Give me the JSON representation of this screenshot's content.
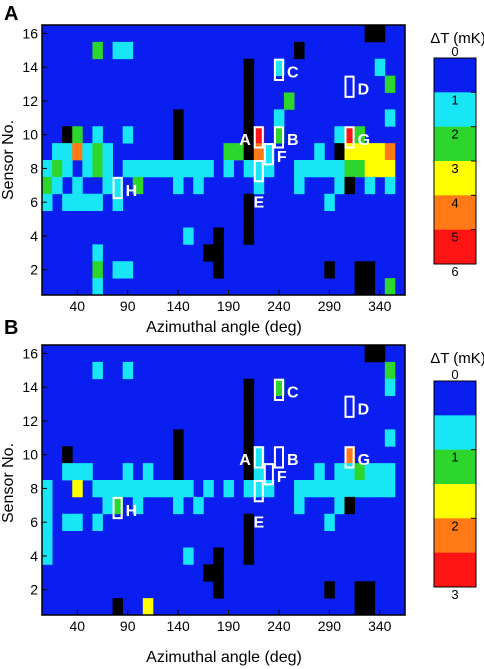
{
  "colors": {
    "background_blue": "#0a1ef0",
    "cyan": "#19e6f5",
    "green": "#2cd62c",
    "yellow": "#ffff00",
    "orange": "#ff7a14",
    "red": "#ff1414",
    "black": "#000000",
    "marker": "#ffffff"
  },
  "chart_data": [
    {
      "panel": "A",
      "type": "heatmap",
      "xlabel": "Azimuthal angle (deg)",
      "ylabel": "Sensor No.",
      "xticks": [
        "40",
        "90",
        "140",
        "190",
        "240",
        "290",
        "340"
      ],
      "yticks": [
        "2",
        "4",
        "6",
        "8",
        "10",
        "12",
        "14",
        "16"
      ],
      "x_range": [
        1,
        36
      ],
      "y_range": [
        1,
        16
      ],
      "grid": false,
      "colorbar": {
        "title": "ΔT (mK)",
        "ticks": [
          "0",
          "1",
          "2",
          "3",
          "4",
          "5",
          "6"
        ],
        "bands": [
          "#0a1ef0",
          "#19e6f5",
          "#2cd62c",
          "#ffff00",
          "#ff7a14",
          "#ff1414"
        ]
      },
      "markers": [
        {
          "label": "A",
          "col": 22,
          "sensor": 10
        },
        {
          "label": "B",
          "col": 24,
          "sensor": 10
        },
        {
          "label": "C",
          "col": 24,
          "sensor": 14
        },
        {
          "label": "D",
          "col": 31,
          "sensor": 13
        },
        {
          "label": "E",
          "col": 22,
          "sensor": 8
        },
        {
          "label": "F",
          "col": 23,
          "sensor": 9
        },
        {
          "label": "G",
          "col": 31,
          "sensor": 10
        },
        {
          "label": "H",
          "col": 8,
          "sensor": 7
        }
      ],
      "cells_note": "value codes: 1=cyan,2=green,3=yellow,4=orange,5=red,-1=black(no data)",
      "cells": [
        [
          33,
          16,
          -1
        ],
        [
          34,
          16,
          -1
        ],
        [
          6,
          15,
          2
        ],
        [
          8,
          15,
          1
        ],
        [
          9,
          15,
          1
        ],
        [
          26,
          15,
          -1
        ],
        [
          21,
          14,
          -1
        ],
        [
          24,
          14,
          1
        ],
        [
          34,
          14,
          1
        ],
        [
          21,
          13,
          -1
        ],
        [
          35,
          13,
          2
        ],
        [
          21,
          12,
          -1
        ],
        [
          25,
          12,
          2
        ],
        [
          14,
          11,
          -1
        ],
        [
          21,
          11,
          -1
        ],
        [
          24,
          11,
          1
        ],
        [
          35,
          11,
          1
        ],
        [
          3,
          10,
          -1
        ],
        [
          4,
          10,
          2
        ],
        [
          6,
          10,
          1
        ],
        [
          9,
          10,
          1
        ],
        [
          14,
          10,
          -1
        ],
        [
          21,
          10,
          -1
        ],
        [
          22,
          10,
          5
        ],
        [
          24,
          10,
          2
        ],
        [
          30,
          10,
          1
        ],
        [
          31,
          10,
          5
        ],
        [
          32,
          10,
          2
        ],
        [
          2,
          9,
          1
        ],
        [
          3,
          9,
          1
        ],
        [
          4,
          9,
          4
        ],
        [
          5,
          9,
          1
        ],
        [
          6,
          9,
          2
        ],
        [
          7,
          9,
          1
        ],
        [
          14,
          9,
          -1
        ],
        [
          19,
          9,
          2
        ],
        [
          20,
          9,
          2
        ],
        [
          21,
          9,
          -1
        ],
        [
          22,
          9,
          4
        ],
        [
          23,
          9,
          1
        ],
        [
          28,
          9,
          1
        ],
        [
          30,
          9,
          -1
        ],
        [
          31,
          9,
          3
        ],
        [
          32,
          9,
          3
        ],
        [
          33,
          9,
          3
        ],
        [
          34,
          9,
          3
        ],
        [
          35,
          9,
          4
        ],
        [
          1,
          8,
          1
        ],
        [
          2,
          8,
          2
        ],
        [
          3,
          8,
          1
        ],
        [
          5,
          8,
          1
        ],
        [
          6,
          8,
          2
        ],
        [
          7,
          8,
          1
        ],
        [
          9,
          8,
          1
        ],
        [
          10,
          8,
          1
        ],
        [
          11,
          8,
          1
        ],
        [
          12,
          8,
          1
        ],
        [
          13,
          8,
          1
        ],
        [
          14,
          8,
          1
        ],
        [
          15,
          8,
          1
        ],
        [
          16,
          8,
          1
        ],
        [
          17,
          8,
          1
        ],
        [
          19,
          8,
          1
        ],
        [
          21,
          8,
          1
        ],
        [
          22,
          8,
          1
        ],
        [
          23,
          8,
          1
        ],
        [
          26,
          8,
          1
        ],
        [
          27,
          8,
          1
        ],
        [
          28,
          8,
          1
        ],
        [
          29,
          8,
          1
        ],
        [
          30,
          8,
          1
        ],
        [
          31,
          8,
          2
        ],
        [
          32,
          8,
          2
        ],
        [
          33,
          8,
          3
        ],
        [
          34,
          8,
          3
        ],
        [
          35,
          8,
          3
        ],
        [
          1,
          7,
          2
        ],
        [
          2,
          7,
          1
        ],
        [
          4,
          7,
          1
        ],
        [
          7,
          7,
          1
        ],
        [
          8,
          7,
          1
        ],
        [
          10,
          7,
          2
        ],
        [
          14,
          7,
          1
        ],
        [
          16,
          7,
          1
        ],
        [
          22,
          7,
          1
        ],
        [
          26,
          7,
          1
        ],
        [
          30,
          7,
          1
        ],
        [
          31,
          7,
          -1
        ],
        [
          33,
          7,
          1
        ],
        [
          35,
          7,
          1
        ],
        [
          1,
          6,
          1
        ],
        [
          3,
          6,
          1
        ],
        [
          4,
          6,
          1
        ],
        [
          5,
          6,
          1
        ],
        [
          6,
          6,
          1
        ],
        [
          8,
          6,
          1
        ],
        [
          21,
          6,
          -1
        ],
        [
          29,
          6,
          1
        ],
        [
          21,
          5,
          -1
        ],
        [
          15,
          4,
          1
        ],
        [
          18,
          4,
          -1
        ],
        [
          21,
          4,
          -1
        ],
        [
          17,
          3,
          -1
        ],
        [
          18,
          3,
          -1
        ],
        [
          6,
          3,
          1
        ],
        [
          6,
          2,
          2
        ],
        [
          8,
          2,
          1
        ],
        [
          9,
          2,
          1
        ],
        [
          18,
          2,
          -1
        ],
        [
          29,
          2,
          -1
        ],
        [
          32,
          2,
          -1
        ],
        [
          33,
          2,
          -1
        ],
        [
          6,
          1,
          1
        ],
        [
          32,
          1,
          -1
        ],
        [
          33,
          1,
          -1
        ],
        [
          35,
          1,
          2
        ]
      ]
    },
    {
      "panel": "B",
      "type": "heatmap",
      "xlabel": "Azimuthal angle (deg)",
      "ylabel": "Sensor No.",
      "xticks": [
        "40",
        "90",
        "140",
        "190",
        "240",
        "290",
        "340"
      ],
      "yticks": [
        "2",
        "4",
        "6",
        "8",
        "10",
        "12",
        "14",
        "16"
      ],
      "x_range": [
        1,
        36
      ],
      "y_range": [
        1,
        16
      ],
      "grid": false,
      "colorbar": {
        "title": "ΔT (mK)",
        "ticks": [
          "0",
          "1",
          "2",
          "3"
        ],
        "bands": [
          "#0a1ef0",
          "#19e6f5",
          "#2cd62c",
          "#ffff00",
          "#ff7a14",
          "#ff1414"
        ]
      },
      "markers": [
        {
          "label": "A",
          "col": 22,
          "sensor": 10
        },
        {
          "label": "B",
          "col": 24,
          "sensor": 10
        },
        {
          "label": "C",
          "col": 24,
          "sensor": 14
        },
        {
          "label": "D",
          "col": 31,
          "sensor": 13
        },
        {
          "label": "E",
          "col": 22,
          "sensor": 8
        },
        {
          "label": "F",
          "col": 23,
          "sensor": 9
        },
        {
          "label": "G",
          "col": 31,
          "sensor": 10
        },
        {
          "label": "H",
          "col": 8,
          "sensor": 7
        }
      ],
      "cells_note": "value codes: 1=cyan,2=green,3=yellow,4=orange,5=red,-1=black(no data)",
      "cells": [
        [
          33,
          16,
          -1
        ],
        [
          34,
          16,
          -1
        ],
        [
          6,
          15,
          1
        ],
        [
          9,
          15,
          1
        ],
        [
          35,
          15,
          2
        ],
        [
          21,
          14,
          -1
        ],
        [
          24,
          14,
          2
        ],
        [
          35,
          14,
          1
        ],
        [
          21,
          13,
          -1
        ],
        [
          21,
          12,
          -1
        ],
        [
          14,
          11,
          -1
        ],
        [
          21,
          11,
          -1
        ],
        [
          35,
          11,
          1
        ],
        [
          3,
          10,
          -1
        ],
        [
          14,
          10,
          -1
        ],
        [
          21,
          10,
          -1
        ],
        [
          22,
          10,
          1
        ],
        [
          31,
          10,
          4
        ],
        [
          3,
          9,
          1
        ],
        [
          4,
          9,
          1
        ],
        [
          5,
          9,
          1
        ],
        [
          9,
          9,
          1
        ],
        [
          11,
          9,
          1
        ],
        [
          14,
          9,
          -1
        ],
        [
          21,
          9,
          -1
        ],
        [
          22,
          9,
          1
        ],
        [
          28,
          9,
          1
        ],
        [
          30,
          9,
          1
        ],
        [
          31,
          9,
          1
        ],
        [
          32,
          9,
          2
        ],
        [
          33,
          9,
          1
        ],
        [
          34,
          9,
          1
        ],
        [
          35,
          9,
          1
        ],
        [
          1,
          8,
          1
        ],
        [
          4,
          8,
          3
        ],
        [
          6,
          8,
          1
        ],
        [
          7,
          8,
          1
        ],
        [
          8,
          8,
          1
        ],
        [
          9,
          8,
          1
        ],
        [
          10,
          8,
          1
        ],
        [
          11,
          8,
          1
        ],
        [
          12,
          8,
          1
        ],
        [
          13,
          8,
          1
        ],
        [
          14,
          8,
          1
        ],
        [
          15,
          8,
          1
        ],
        [
          17,
          8,
          1
        ],
        [
          19,
          8,
          1
        ],
        [
          21,
          8,
          1
        ],
        [
          22,
          8,
          1
        ],
        [
          23,
          8,
          1
        ],
        [
          26,
          8,
          1
        ],
        [
          27,
          8,
          1
        ],
        [
          28,
          8,
          1
        ],
        [
          29,
          8,
          1
        ],
        [
          30,
          8,
          1
        ],
        [
          31,
          8,
          1
        ],
        [
          32,
          8,
          1
        ],
        [
          33,
          8,
          1
        ],
        [
          34,
          8,
          1
        ],
        [
          35,
          8,
          1
        ],
        [
          1,
          7,
          1
        ],
        [
          7,
          7,
          1
        ],
        [
          8,
          7,
          2
        ],
        [
          10,
          7,
          1
        ],
        [
          14,
          7,
          1
        ],
        [
          16,
          7,
          1
        ],
        [
          26,
          7,
          1
        ],
        [
          30,
          7,
          1
        ],
        [
          31,
          7,
          -1
        ],
        [
          1,
          6,
          1
        ],
        [
          3,
          6,
          1
        ],
        [
          4,
          6,
          1
        ],
        [
          6,
          6,
          1
        ],
        [
          21,
          6,
          -1
        ],
        [
          29,
          6,
          1
        ],
        [
          1,
          5,
          1
        ],
        [
          21,
          5,
          -1
        ],
        [
          1,
          4,
          1
        ],
        [
          15,
          4,
          1
        ],
        [
          18,
          4,
          -1
        ],
        [
          21,
          4,
          -1
        ],
        [
          17,
          3,
          -1
        ],
        [
          18,
          3,
          -1
        ],
        [
          18,
          2,
          -1
        ],
        [
          29,
          2,
          -1
        ],
        [
          32,
          2,
          -1
        ],
        [
          33,
          2,
          -1
        ],
        [
          8,
          1,
          -1
        ],
        [
          11,
          1,
          3
        ],
        [
          32,
          1,
          -1
        ],
        [
          33,
          1,
          -1
        ]
      ]
    }
  ]
}
